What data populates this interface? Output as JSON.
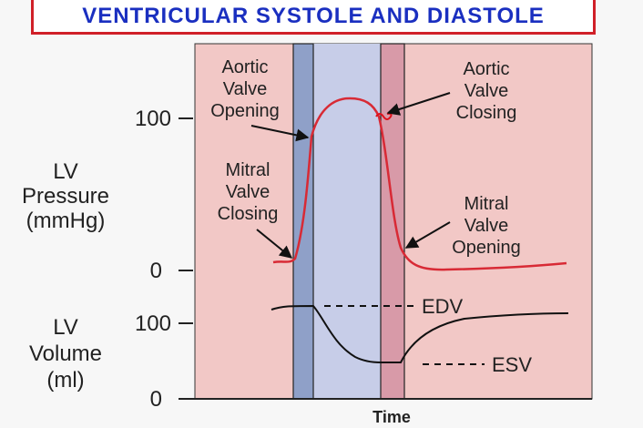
{
  "title": "VENTRICULAR  SYSTOLE  AND  DIASTOLE",
  "y_axis": {
    "pressure_label": [
      "LV",
      "Pressure",
      "(mmHg)"
    ],
    "volume_label": [
      "LV",
      "Volume",
      "(ml)"
    ],
    "pressure_ticks": [
      "100",
      "0"
    ],
    "volume_ticks": [
      "100",
      "0"
    ]
  },
  "x_axis": {
    "label": "Time"
  },
  "annotations": {
    "aortic_opening": [
      "Aortic",
      "Valve",
      "Opening"
    ],
    "mitral_closing": [
      "Mitral",
      "Valve",
      "Closing"
    ],
    "aortic_closing": [
      "Aortic",
      "Valve",
      "Closing"
    ],
    "mitral_opening": [
      "Mitral",
      "Valve",
      "Opening"
    ],
    "edv": "EDV",
    "esv": "ESV"
  },
  "colors": {
    "title_text": "#1a2fc0",
    "title_border": "#d02028",
    "diastole_bg": "#f2c8c6",
    "systole_bg": "#c7cde8",
    "isovolumetric_bg": "#8fa0c8",
    "isovolumetric_relax_bg": "#d89aa8",
    "pressure_curve": "#d82a35",
    "volume_curve": "#111111"
  }
}
